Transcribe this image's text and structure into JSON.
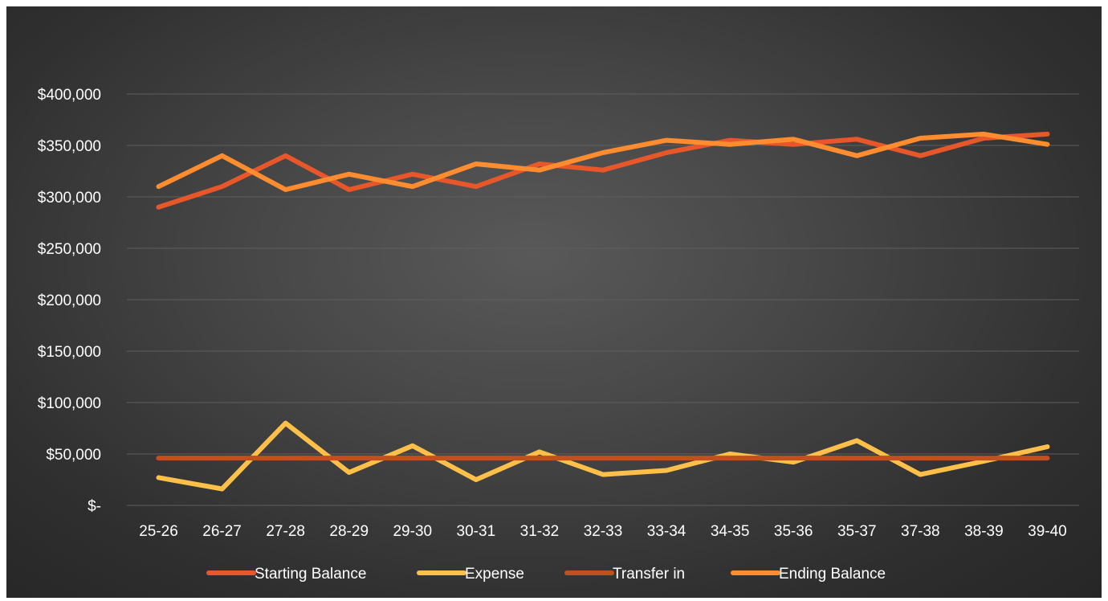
{
  "colors": {
    "background_center": "#595959",
    "background_edge": "#262626",
    "grid": "#5e5e5e",
    "text": "#ffffff"
  },
  "chart_data": {
    "type": "line",
    "title": "",
    "xlabel": "",
    "ylabel": "",
    "ylim": [
      0,
      400000
    ],
    "yticks": [
      0,
      50000,
      100000,
      150000,
      200000,
      250000,
      300000,
      350000,
      400000
    ],
    "ytick_labels": [
      "$-",
      "$50,000",
      "$100,000",
      "$150,000",
      "$200,000",
      "$250,000",
      "$300,000",
      "$350,000",
      "$400,000"
    ],
    "grid": true,
    "legend_position": "bottom",
    "categories": [
      "25-26",
      "26-27",
      "27-28",
      "28-29",
      "29-30",
      "30-31",
      "31-32",
      "32-33",
      "33-34",
      "34-35",
      "35-36",
      "35-37",
      "37-38",
      "38-39",
      "39-40"
    ],
    "series": [
      {
        "name": "Starting Balance",
        "color": "#e8572a",
        "values": [
          290000,
          310000,
          340000,
          307000,
          322000,
          310000,
          332000,
          326000,
          343000,
          355000,
          351000,
          356000,
          340000,
          357000,
          361000
        ]
      },
      {
        "name": "Expense",
        "color": "#ffc04a",
        "values": [
          27000,
          16000,
          80000,
          32000,
          58000,
          25000,
          52000,
          30000,
          34000,
          50000,
          42000,
          63000,
          30000,
          43000,
          57000
        ]
      },
      {
        "name": "Transfer in",
        "color": "#c0501e",
        "values": [
          46000,
          46000,
          46000,
          46000,
          46000,
          46000,
          46000,
          46000,
          46000,
          46000,
          46000,
          46000,
          46000,
          46000,
          46000
        ]
      },
      {
        "name": "Ending Balance",
        "color": "#ff8c2e",
        "values": [
          310000,
          340000,
          307000,
          322000,
          310000,
          332000,
          326000,
          343000,
          355000,
          351000,
          356000,
          340000,
          357000,
          361000,
          351000
        ]
      }
    ]
  }
}
